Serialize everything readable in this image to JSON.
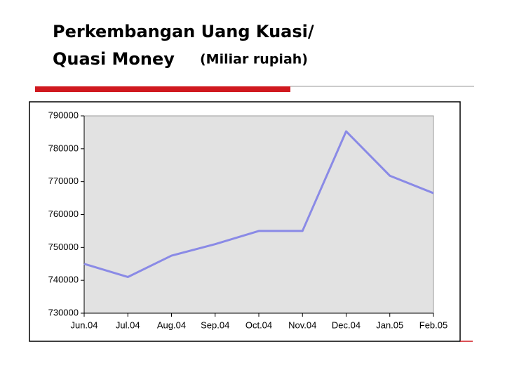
{
  "chart_data": {
    "type": "line",
    "title_line1": "Perkembangan Uang Kuasi/",
    "title_line2": "Quasi Money",
    "subtitle": "(Miliar rupiah)",
    "categories": [
      "Jun.04",
      "Jul.04",
      "Aug.04",
      "Sep.04",
      "Oct.04",
      "Nov.04",
      "Dec.04",
      "Jan.05",
      "Feb.05"
    ],
    "series": [
      {
        "color": "#8a8ae6",
        "values": [
          745000,
          741000,
          747500,
          751000,
          755000,
          755000,
          785300,
          771800,
          766500
        ]
      }
    ],
    "ylim": [
      730000,
      790000
    ],
    "yticks": [
      730000,
      740000,
      750000,
      760000,
      770000,
      780000,
      790000
    ],
    "grid": false
  }
}
